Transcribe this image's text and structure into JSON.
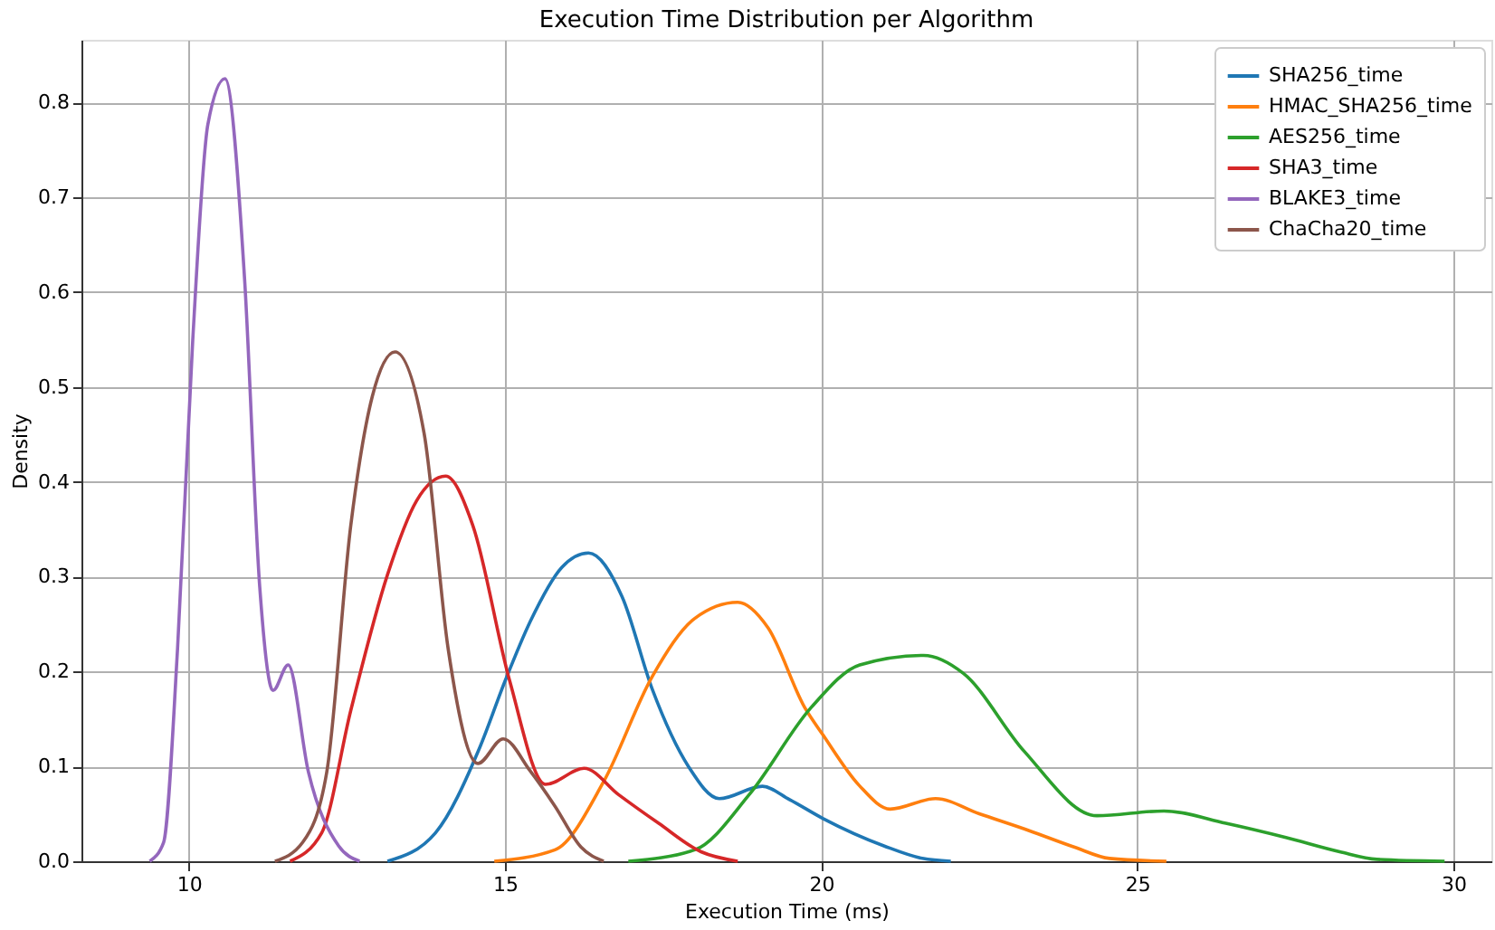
{
  "chart_data": {
    "type": "line",
    "title": "Execution Time Distribution per Algorithm",
    "xlabel": "Execution Time (ms)",
    "ylabel": "Density",
    "xlim": [
      8.3,
      30.6
    ],
    "xticks": [
      10,
      15,
      20,
      25,
      30
    ],
    "ylim": [
      0,
      0.866
    ],
    "yticks": [
      {
        "value": 0,
        "label": "0.0"
      },
      0.1,
      0.2,
      0.3,
      0.4,
      0.5,
      0.6,
      0.7,
      0.8
    ],
    "grid": true,
    "legend": "top right",
    "marker": "none",
    "line_style": "solid",
    "series": [
      {
        "name": "SHA256_time",
        "color": "#1f77b4",
        "x": [
          13.14,
          13.9,
          14.6,
          15.0,
          15.4,
          15.9,
          16.32,
          16.85,
          17.33,
          17.9,
          18.39,
          19.07,
          19.5,
          20.03,
          21.0,
          21.6,
          22.05
        ],
        "values": [
          0,
          0.03,
          0.12,
          0.19,
          0.253,
          0.31,
          0.325,
          0.279,
          0.181,
          0.1,
          0.066,
          0.079,
          0.065,
          0.045,
          0.016,
          0.003,
          0
        ]
      },
      {
        "name": "HMAC_SHA256_time",
        "color": "#ff7f0e",
        "x": [
          14.83,
          15.79,
          16.56,
          17.33,
          18.0,
          18.68,
          19.16,
          19.74,
          20.03,
          20.6,
          21.09,
          21.81,
          22.5,
          23.3,
          24.0,
          24.56,
          25.46
        ],
        "values": [
          0,
          0.012,
          0.084,
          0.195,
          0.256,
          0.273,
          0.246,
          0.162,
          0.133,
          0.08,
          0.055,
          0.066,
          0.05,
          0.032,
          0.015,
          0.003,
          0
        ]
      },
      {
        "name": "AES256_time",
        "color": "#2ca02c",
        "x": [
          16.95,
          18.0,
          18.87,
          19.84,
          20.61,
          21.62,
          22.25,
          23.21,
          24.36,
          25.42,
          26.4,
          27.35,
          28.2,
          28.79,
          29.86
        ],
        "values": [
          0,
          0.012,
          0.071,
          0.162,
          0.207,
          0.217,
          0.198,
          0.116,
          0.048,
          0.053,
          0.04,
          0.025,
          0.01,
          0.002,
          0
        ]
      },
      {
        "name": "SHA3_time",
        "color": "#d62728",
        "x": [
          11.6,
          12.1,
          12.56,
          13.14,
          13.6,
          14.06,
          14.49,
          15.07,
          15.64,
          16.25,
          16.8,
          17.43,
          18.1,
          18.68
        ],
        "values": [
          0,
          0.03,
          0.159,
          0.302,
          0.38,
          0.406,
          0.354,
          0.191,
          0.081,
          0.098,
          0.07,
          0.04,
          0.01,
          0
        ]
      },
      {
        "name": "BLAKE3_time",
        "color": "#9467bd",
        "x": [
          9.38,
          9.6,
          9.82,
          10.06,
          10.3,
          10.57,
          10.88,
          11.12,
          11.33,
          11.57,
          11.89,
          12.37,
          12.7
        ],
        "values": [
          0,
          0.02,
          0.224,
          0.549,
          0.777,
          0.825,
          0.614,
          0.289,
          0.18,
          0.207,
          0.094,
          0.016,
          0
        ]
      },
      {
        "name": "ChaCha20_time",
        "color": "#8c564b",
        "x": [
          11.36,
          11.8,
          12.18,
          12.56,
          12.9,
          13.26,
          13.72,
          14.1,
          14.57,
          14.97,
          15.4,
          15.79,
          16.2,
          16.56
        ],
        "values": [
          0,
          0.02,
          0.094,
          0.354,
          0.49,
          0.537,
          0.451,
          0.224,
          0.103,
          0.129,
          0.095,
          0.058,
          0.015,
          0
        ]
      }
    ]
  }
}
